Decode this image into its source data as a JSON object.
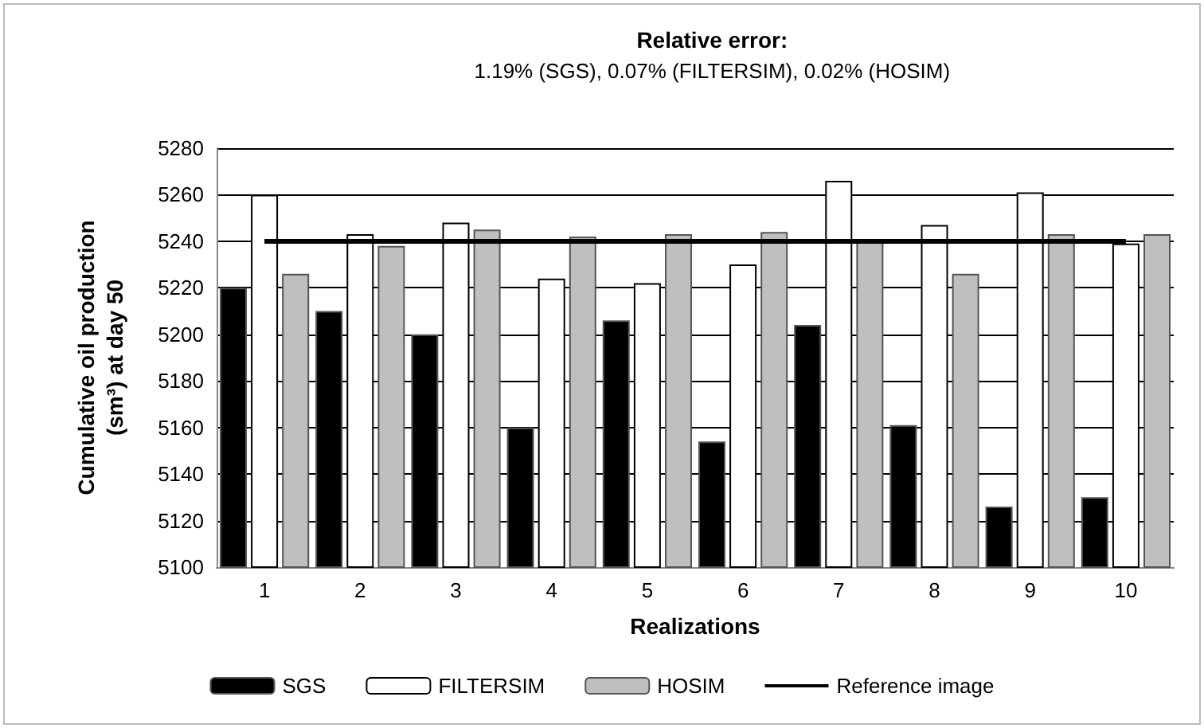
{
  "chart_data": {
    "type": "bar",
    "title": "Relative error:",
    "subtitle": "1.19% (SGS), 0.07% (FILTERSIM), 0.02% (HOSIM)",
    "xlabel": "Realizations",
    "ylabel": "Cumulative oil production (sm³) at day 50",
    "categories": [
      "1",
      "2",
      "3",
      "4",
      "5",
      "6",
      "7",
      "8",
      "9",
      "10"
    ],
    "series": [
      {
        "name": "SGS",
        "color": "#000000",
        "values": [
          5220,
          5210,
          5200,
          5160,
          5206,
          5154,
          5204,
          5161,
          5126,
          5130
        ]
      },
      {
        "name": "FILTERSIM",
        "color": "#ffffff",
        "values": [
          5260,
          5243,
          5248,
          5224,
          5222,
          5230,
          5266,
          5247,
          5261,
          5239
        ]
      },
      {
        "name": "HOSIM",
        "color": "#bfbfbf",
        "values": [
          5226,
          5238,
          5245,
          5242,
          5243,
          5244,
          5240,
          5226,
          5243,
          5243
        ]
      },
      {
        "name": "Reference image",
        "type": "line",
        "color": "#000000",
        "values": [
          5240,
          5240,
          5240,
          5240,
          5240,
          5240,
          5240,
          5240,
          5240,
          5240
        ]
      }
    ],
    "ylim": [
      5100,
      5280
    ],
    "yticks": [
      5100,
      5120,
      5140,
      5160,
      5180,
      5200,
      5220,
      5240,
      5260,
      5280
    ],
    "grid": "y",
    "legend": "bottom",
    "marker": "none",
    "line_style": "solid"
  }
}
